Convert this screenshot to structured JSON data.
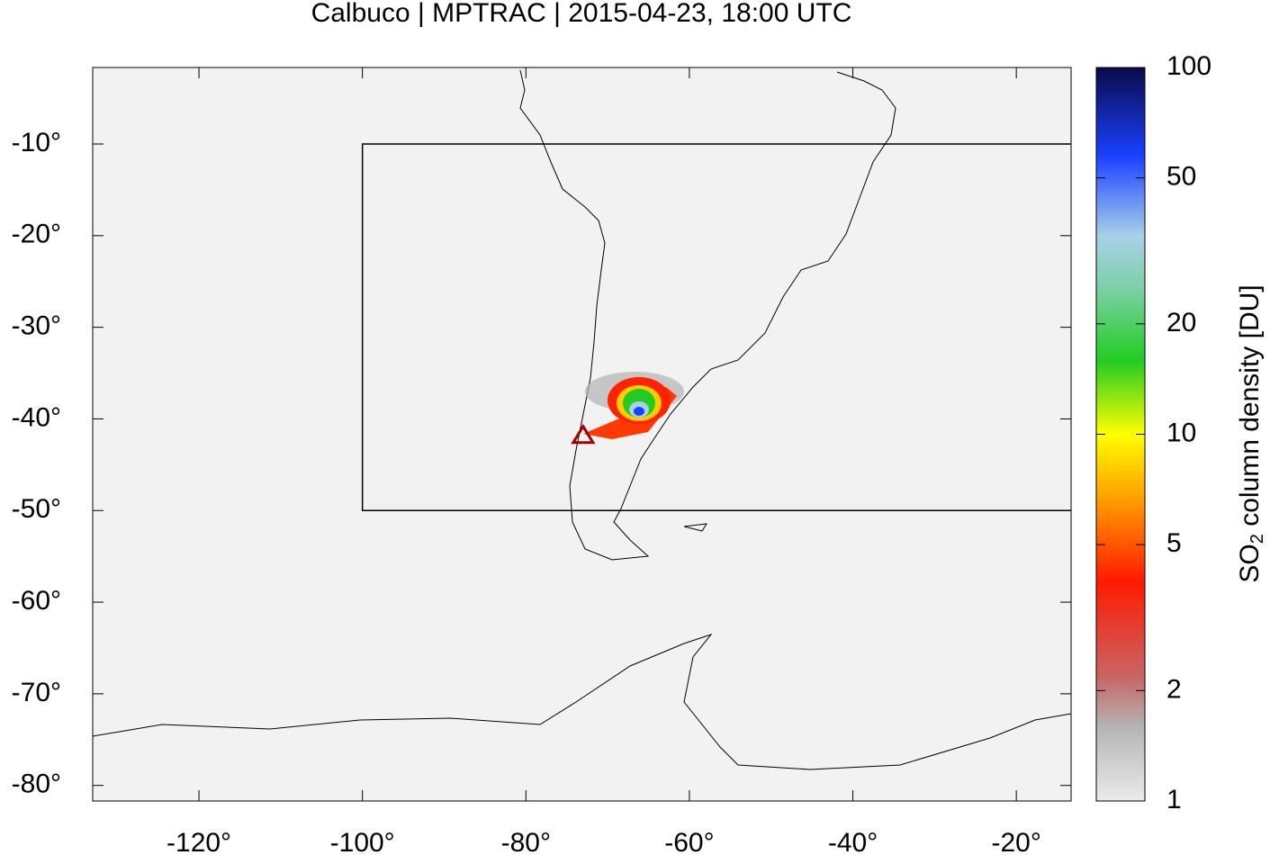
{
  "map": {
    "title": "Calbuco | MPTRAC | 2015-04-23, 18:00 UTC",
    "xlim": [
      -133,
      -13.3
    ],
    "ylim": [
      -81.7,
      -1.65
    ],
    "xticks": [
      {
        "value": -120,
        "label": "-120°"
      },
      {
        "value": -100,
        "label": "-100°"
      },
      {
        "value": -80,
        "label": "-80°"
      },
      {
        "value": -60,
        "label": "-60°"
      },
      {
        "value": -40,
        "label": "-40°"
      },
      {
        "value": -20,
        "label": "-20°"
      }
    ],
    "yticks": [
      {
        "value": -10,
        "label": "-10°"
      },
      {
        "value": -20,
        "label": "-20°"
      },
      {
        "value": -30,
        "label": "-30°"
      },
      {
        "value": -40,
        "label": "-40°"
      },
      {
        "value": -50,
        "label": "-50°"
      },
      {
        "value": -60,
        "label": "-60°"
      },
      {
        "value": -70,
        "label": "-70°"
      },
      {
        "value": -80,
        "label": "-80°"
      }
    ],
    "region": {
      "lon_min": -100,
      "lat_min": -50,
      "lat_max": -10
    },
    "volcano": {
      "lon": -73,
      "lat": -41.8
    },
    "colorbar": {
      "label_parts": [
        "SO",
        "2",
        " column density [DU]"
      ],
      "log_scale": true,
      "lim": [
        1,
        100
      ],
      "ticks": [
        1,
        2,
        5,
        10,
        20,
        50,
        100
      ]
    }
  }
}
